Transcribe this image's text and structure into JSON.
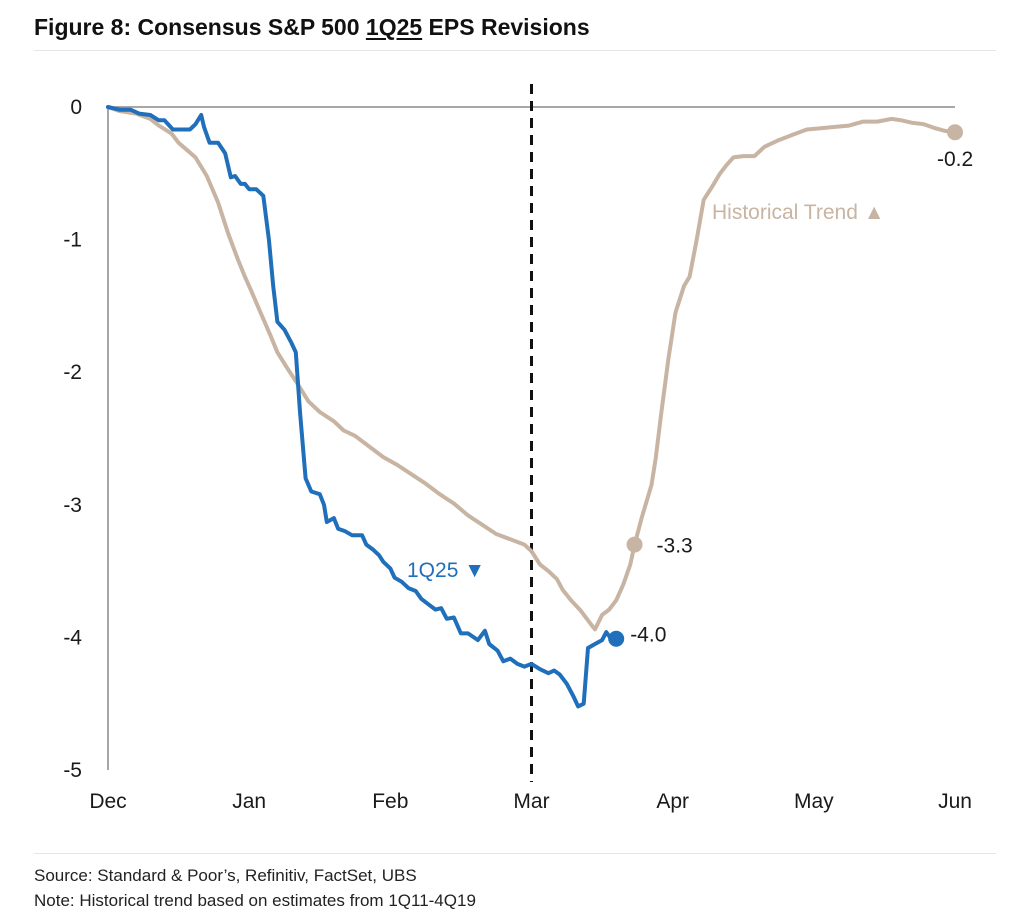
{
  "title": {
    "prefix": "Figure 8: Consensus S&P 500 ",
    "underlined": "1Q25",
    "suffix": " EPS Revisions"
  },
  "footnotes": {
    "source": "Source: Standard & Poor’s, Refinitiv, FactSet, UBS",
    "note": "Note: Historical trend based on estimates from 1Q11-4Q19"
  },
  "colors": {
    "q125": "#1f6fba",
    "historical": "#c8b4a2",
    "axis": "#8a8a8a",
    "divider": "#111111"
  },
  "chart_data": {
    "type": "line",
    "title": "Figure 8: Consensus S&P 500 1Q25 EPS Revisions",
    "xlabel": "",
    "ylabel": "",
    "ylim": [
      -5,
      0
    ],
    "yticks": [
      0,
      -1,
      -2,
      -3,
      -4,
      -5
    ],
    "ytick_labels": [
      "0",
      "-1",
      "-2",
      "-3",
      "-4",
      "-5"
    ],
    "xlim": [
      0,
      6
    ],
    "xticks": [
      0,
      1,
      2,
      3,
      4,
      5,
      6
    ],
    "xtick_labels": [
      "Dec",
      "Jan",
      "Feb",
      "Mar",
      "Apr",
      "May",
      "Jun"
    ],
    "divider_x": 3,
    "grid": false,
    "series": [
      {
        "name": "Historical Trend",
        "legend_label": "Historical Trend",
        "marker": "▲",
        "end_label": "-3.3",
        "final_label": "-0.2",
        "points": [
          [
            0.0,
            0.0
          ],
          [
            0.08,
            -0.03
          ],
          [
            0.2,
            -0.05
          ],
          [
            0.3,
            -0.09
          ],
          [
            0.36,
            -0.14
          ],
          [
            0.45,
            -0.2
          ],
          [
            0.5,
            -0.27
          ],
          [
            0.62,
            -0.38
          ],
          [
            0.7,
            -0.52
          ],
          [
            0.78,
            -0.72
          ],
          [
            0.85,
            -0.95
          ],
          [
            0.92,
            -1.15
          ],
          [
            0.97,
            -1.28
          ],
          [
            1.02,
            -1.4
          ],
          [
            1.08,
            -1.55
          ],
          [
            1.15,
            -1.72
          ],
          [
            1.2,
            -1.85
          ],
          [
            1.27,
            -1.97
          ],
          [
            1.35,
            -2.1
          ],
          [
            1.42,
            -2.22
          ],
          [
            1.5,
            -2.3
          ],
          [
            1.6,
            -2.37
          ],
          [
            1.67,
            -2.44
          ],
          [
            1.75,
            -2.48
          ],
          [
            1.85,
            -2.56
          ],
          [
            1.95,
            -2.64
          ],
          [
            2.05,
            -2.7
          ],
          [
            2.15,
            -2.77
          ],
          [
            2.25,
            -2.84
          ],
          [
            2.35,
            -2.92
          ],
          [
            2.45,
            -2.99
          ],
          [
            2.55,
            -3.08
          ],
          [
            2.65,
            -3.15
          ],
          [
            2.75,
            -3.22
          ],
          [
            2.85,
            -3.26
          ],
          [
            2.95,
            -3.3
          ],
          [
            3.0,
            -3.35
          ],
          [
            3.06,
            -3.45
          ],
          [
            3.12,
            -3.5
          ],
          [
            3.18,
            -3.56
          ],
          [
            3.22,
            -3.64
          ],
          [
            3.28,
            -3.72
          ],
          [
            3.35,
            -3.8
          ],
          [
            3.42,
            -3.9
          ],
          [
            3.45,
            -3.94
          ],
          [
            3.5,
            -3.83
          ],
          [
            3.55,
            -3.79
          ],
          [
            3.6,
            -3.72
          ],
          [
            3.65,
            -3.6
          ],
          [
            3.7,
            -3.45
          ],
          [
            3.73,
            -3.3
          ],
          [
            3.78,
            -3.1
          ],
          [
            3.85,
            -2.85
          ],
          [
            3.88,
            -2.65
          ],
          [
            3.92,
            -2.3
          ],
          [
            3.97,
            -1.9
          ],
          [
            4.02,
            -1.55
          ],
          [
            4.08,
            -1.35
          ],
          [
            4.12,
            -1.28
          ],
          [
            4.17,
            -1.0
          ],
          [
            4.22,
            -0.7
          ],
          [
            4.28,
            -0.6
          ],
          [
            4.33,
            -0.51
          ],
          [
            4.38,
            -0.44
          ],
          [
            4.43,
            -0.38
          ],
          [
            4.5,
            -0.37
          ],
          [
            4.58,
            -0.37
          ],
          [
            4.65,
            -0.3
          ],
          [
            4.75,
            -0.25
          ],
          [
            4.85,
            -0.21
          ],
          [
            4.95,
            -0.17
          ],
          [
            5.05,
            -0.16
          ],
          [
            5.15,
            -0.15
          ],
          [
            5.25,
            -0.14
          ],
          [
            5.35,
            -0.11
          ],
          [
            5.45,
            -0.11
          ],
          [
            5.55,
            -0.09
          ],
          [
            5.62,
            -0.1
          ],
          [
            5.7,
            -0.12
          ],
          [
            5.78,
            -0.13
          ],
          [
            5.86,
            -0.16
          ],
          [
            5.93,
            -0.18
          ],
          [
            6.0,
            -0.19
          ]
        ]
      },
      {
        "name": "1Q25",
        "legend_label": "1Q25",
        "marker": "▼",
        "end_label": "-4.0",
        "points": [
          [
            0.0,
            0.0
          ],
          [
            0.08,
            -0.02
          ],
          [
            0.16,
            -0.02
          ],
          [
            0.22,
            -0.05
          ],
          [
            0.3,
            -0.06
          ],
          [
            0.36,
            -0.1
          ],
          [
            0.4,
            -0.1
          ],
          [
            0.46,
            -0.17
          ],
          [
            0.52,
            -0.17
          ],
          [
            0.58,
            -0.17
          ],
          [
            0.62,
            -0.13
          ],
          [
            0.66,
            -0.06
          ],
          [
            0.68,
            -0.15
          ],
          [
            0.72,
            -0.27
          ],
          [
            0.78,
            -0.27
          ],
          [
            0.83,
            -0.35
          ],
          [
            0.87,
            -0.53
          ],
          [
            0.9,
            -0.52
          ],
          [
            0.94,
            -0.58
          ],
          [
            0.97,
            -0.58
          ],
          [
            1.0,
            -0.62
          ],
          [
            1.05,
            -0.62
          ],
          [
            1.1,
            -0.67
          ],
          [
            1.14,
            -1.0
          ],
          [
            1.17,
            -1.35
          ],
          [
            1.2,
            -1.62
          ],
          [
            1.25,
            -1.68
          ],
          [
            1.3,
            -1.78
          ],
          [
            1.33,
            -1.85
          ],
          [
            1.36,
            -2.3
          ],
          [
            1.4,
            -2.8
          ],
          [
            1.44,
            -2.9
          ],
          [
            1.5,
            -2.92
          ],
          [
            1.53,
            -3.0
          ],
          [
            1.55,
            -3.13
          ],
          [
            1.6,
            -3.1
          ],
          [
            1.63,
            -3.18
          ],
          [
            1.68,
            -3.2
          ],
          [
            1.73,
            -3.23
          ],
          [
            1.8,
            -3.23
          ],
          [
            1.83,
            -3.3
          ],
          [
            1.88,
            -3.34
          ],
          [
            1.92,
            -3.38
          ],
          [
            1.95,
            -3.43
          ],
          [
            2.0,
            -3.48
          ],
          [
            2.03,
            -3.55
          ],
          [
            2.08,
            -3.58
          ],
          [
            2.13,
            -3.63
          ],
          [
            2.18,
            -3.65
          ],
          [
            2.22,
            -3.71
          ],
          [
            2.27,
            -3.75
          ],
          [
            2.32,
            -3.79
          ],
          [
            2.36,
            -3.78
          ],
          [
            2.4,
            -3.86
          ],
          [
            2.45,
            -3.85
          ],
          [
            2.5,
            -3.97
          ],
          [
            2.55,
            -3.97
          ],
          [
            2.62,
            -4.02
          ],
          [
            2.67,
            -3.95
          ],
          [
            2.7,
            -4.05
          ],
          [
            2.76,
            -4.1
          ],
          [
            2.8,
            -4.18
          ],
          [
            2.85,
            -4.16
          ],
          [
            2.9,
            -4.2
          ],
          [
            2.95,
            -4.22
          ],
          [
            3.0,
            -4.2
          ],
          [
            3.06,
            -4.24
          ],
          [
            3.12,
            -4.27
          ],
          [
            3.16,
            -4.25
          ],
          [
            3.2,
            -4.28
          ],
          [
            3.25,
            -4.35
          ],
          [
            3.3,
            -4.45
          ],
          [
            3.33,
            -4.52
          ],
          [
            3.37,
            -4.5
          ],
          [
            3.4,
            -4.08
          ],
          [
            3.45,
            -4.05
          ],
          [
            3.5,
            -4.02
          ],
          [
            3.53,
            -3.96
          ],
          [
            3.57,
            -4.02
          ],
          [
            3.6,
            -4.01
          ]
        ]
      }
    ]
  }
}
